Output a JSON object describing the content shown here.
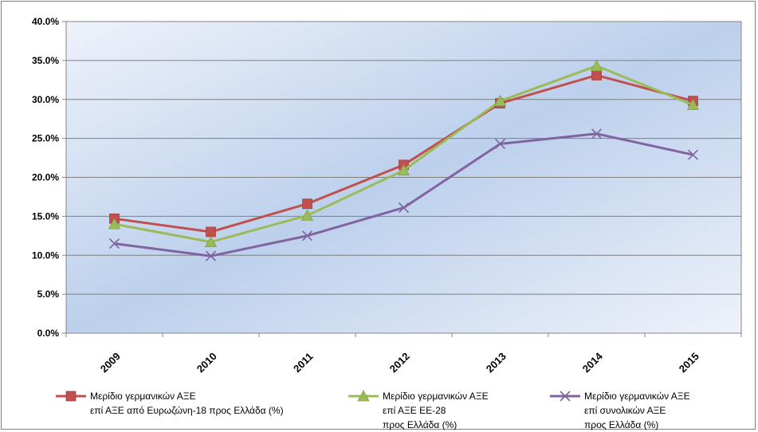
{
  "chart_data": {
    "type": "line",
    "categories": [
      "2009",
      "2010",
      "2011",
      "2012",
      "2013",
      "2014",
      "2015"
    ],
    "ylim": [
      0,
      40
    ],
    "ytick_step": 5,
    "ytick_labels": [
      "0.0%",
      "5.0%",
      "10.0%",
      "15.0%",
      "20.0%",
      "25.0%",
      "30.0%",
      "35.0%",
      "40.0%"
    ],
    "grid": true,
    "legend_position": "bottom",
    "title": "",
    "xlabel": "",
    "ylabel": "",
    "series": [
      {
        "name": "Μερίδιο γερμανικών ΑΞΕ επί ΑΞΕ από Ευρωζώνη-18 προς Ελλάδα (%)",
        "legend_lines": [
          "Μερίδιο γερμανικών ΑΞΕ",
          "επί ΑΞΕ από Ευρωζώνη-18 προς Ελλάδα (%)"
        ],
        "color": "#c0504d",
        "marker": "square",
        "values": [
          14.7,
          13.0,
          16.6,
          21.6,
          29.5,
          33.1,
          29.8
        ]
      },
      {
        "name": "Μερίδιο γερμανικών ΑΞΕ επί ΑΞΕ ΕΕ-28 προς Ελλάδα (%)",
        "legend_lines": [
          "Μερίδιο γερμανικών ΑΞΕ",
          "επί ΑΞΕ ΕΕ-28",
          "προς Ελλάδα (%)"
        ],
        "color": "#9bbb59",
        "marker": "triangle",
        "values": [
          14.0,
          11.7,
          15.1,
          20.9,
          29.8,
          34.3,
          29.3
        ]
      },
      {
        "name": "Μερίδιο γερμανικών ΑΞΕ επί συνολικών ΑΞΕ προς Ελλάδα (%)",
        "legend_lines": [
          "Μερίδιο γερμανικών ΑΞΕ",
          "επί συνολικών ΑΞΕ",
          "προς Ελλάδα (%)"
        ],
        "color": "#8064a2",
        "marker": "x",
        "values": [
          11.5,
          9.9,
          12.5,
          16.1,
          24.3,
          25.6,
          22.9
        ]
      }
    ]
  }
}
